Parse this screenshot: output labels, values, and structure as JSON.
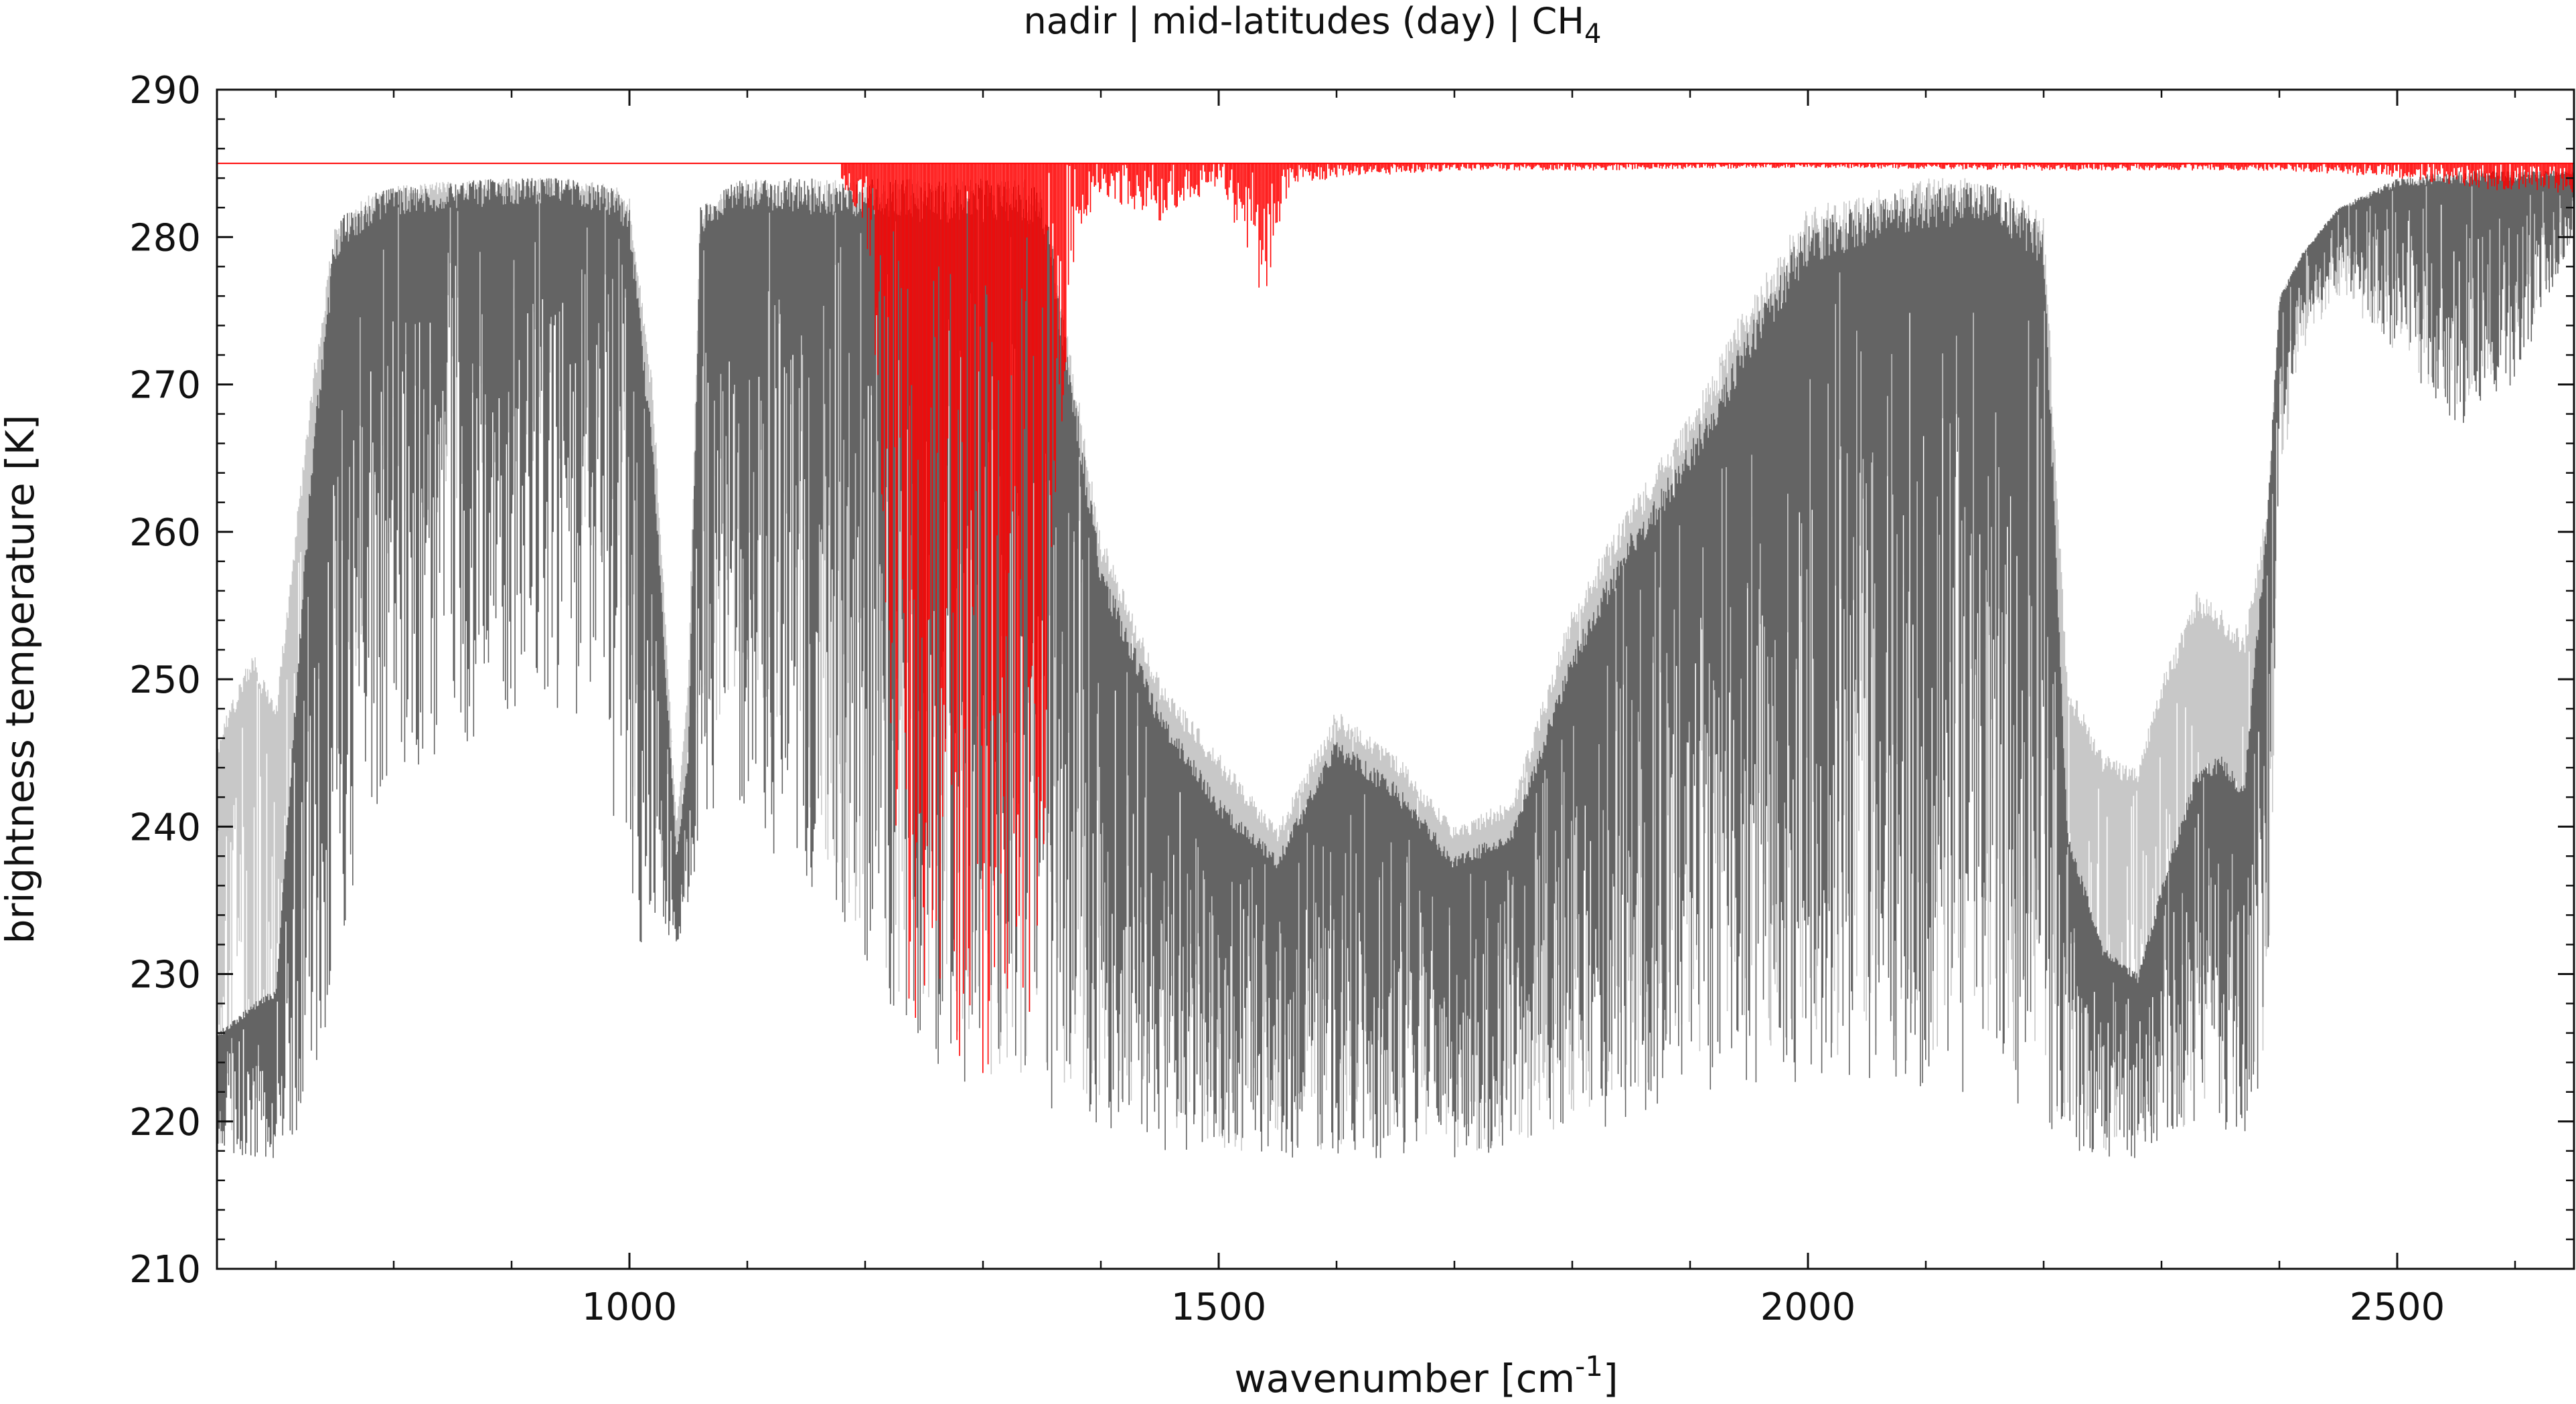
{
  "chart_data": {
    "type": "line",
    "title_prefix": "nadir | mid-latitudes (day) | CH",
    "title_subscript": "4",
    "xlabel_prefix": "wavenumber [cm",
    "xlabel_superscript": "-1",
    "xlabel_suffix": "]",
    "ylabel": "brightness temperature [K]",
    "xlim": [
      650,
      2650
    ],
    "ylim": [
      210,
      290
    ],
    "x_ticks": [
      1000,
      1500,
      2000,
      2500
    ],
    "x_tick_labels": [
      "1000",
      "1500",
      "2000",
      "2500"
    ],
    "x_minor_step": 100,
    "y_ticks": [
      210,
      220,
      230,
      240,
      250,
      260,
      270,
      280,
      290
    ],
    "y_tick_labels": [
      "210",
      "220",
      "230",
      "240",
      "250",
      "260",
      "270",
      "280",
      "290"
    ],
    "y_minor_step": 2,
    "grid": false,
    "legend": "none",
    "series": [
      {
        "color": "#c8c8c8",
        "envelope_x": [
          650,
          680,
          700,
          730,
          750,
          780,
          800,
          850,
          900,
          950,
          990,
          1000,
          1020,
          1040,
          1050,
          1060,
          1080,
          1100,
          1150,
          1200,
          1250,
          1300,
          1350,
          1400,
          1450,
          1500,
          1550,
          1600,
          1650,
          1700,
          1750,
          1800,
          1850,
          1900,
          1950,
          2000,
          2050,
          2100,
          2150,
          2200,
          2220,
          2250,
          2280,
          2300,
          2330,
          2350,
          2370,
          2390,
          2400,
          2420,
          2450,
          2500,
          2550,
          2600,
          2650
        ],
        "envelope_top": [
          246,
          252,
          248,
          270,
          281,
          283,
          283.5,
          283.8,
          284,
          284,
          283.5,
          283,
          270,
          240,
          250,
          282,
          283.5,
          284,
          284,
          284,
          284,
          284,
          284,
          260,
          250,
          245,
          240,
          248,
          245,
          240,
          242,
          255,
          262,
          268,
          276,
          282,
          283,
          284,
          284,
          282,
          250,
          245,
          244,
          250,
          256,
          255,
          253,
          262,
          276,
          279,
          282,
          284,
          284.5,
          284.5,
          284.5
        ],
        "envelope_bottom": [
          218,
          220,
          226,
          230,
          243,
          255,
          258,
          262,
          265,
          262,
          255,
          240,
          235,
          234,
          235,
          245,
          248,
          250,
          240,
          232,
          225,
          222,
          222,
          221,
          219,
          218,
          218,
          218,
          218,
          218,
          218,
          220,
          222,
          224,
          225,
          225,
          224,
          224,
          224,
          222,
          219,
          218,
          218,
          219,
          220,
          221,
          222,
          225,
          262,
          272,
          276,
          272,
          268,
          272,
          280
        ]
      },
      {
        "color": "#646464",
        "envelope_x": [
          650,
          680,
          700,
          730,
          750,
          780,
          800,
          850,
          900,
          950,
          990,
          1000,
          1020,
          1040,
          1050,
          1060,
          1080,
          1100,
          1150,
          1200,
          1250,
          1300,
          1350,
          1400,
          1450,
          1500,
          1550,
          1600,
          1650,
          1700,
          1750,
          1800,
          1850,
          1900,
          1950,
          2000,
          2050,
          2100,
          2150,
          2200,
          2220,
          2250,
          2280,
          2300,
          2330,
          2350,
          2370,
          2390,
          2400,
          2420,
          2450,
          2500,
          2550,
          2600,
          2650
        ],
        "envelope_top": [
          226,
          228,
          229,
          265,
          281,
          283,
          283.5,
          283.8,
          284,
          284,
          283.5,
          282,
          266,
          238,
          245,
          282,
          283.5,
          284,
          284,
          284,
          284,
          284,
          284,
          258,
          248,
          242,
          238,
          246,
          243,
          238,
          240,
          252,
          260,
          266,
          274,
          281,
          282.5,
          283.5,
          284,
          281,
          240,
          232,
          230,
          236,
          244,
          245,
          243,
          262,
          276,
          279,
          282,
          284,
          284.5,
          284.5,
          284.5
        ],
        "envelope_bottom": [
          217.5,
          217.5,
          217.5,
          220,
          230,
          240,
          242,
          245,
          248,
          248,
          240,
          232,
          232,
          232,
          233,
          240,
          242,
          240,
          235,
          230,
          224,
          222,
          221,
          219,
          218,
          217.5,
          217.5,
          217.5,
          217.5,
          217.5,
          218,
          219,
          220,
          221,
          222,
          222,
          222,
          222,
          222,
          220,
          218,
          217.5,
          217.5,
          218,
          219,
          219.5,
          218,
          225,
          266,
          274,
          277,
          272,
          267,
          270,
          280
        ]
      },
      {
        "color": "#ff0000",
        "baseline": 285,
        "dips_x": [
          1180,
          1200,
          1210,
          1220,
          1230,
          1240,
          1250,
          1260,
          1270,
          1280,
          1290,
          1300,
          1310,
          1320,
          1330,
          1340,
          1350,
          1360,
          1370,
          1380,
          1400,
          1420,
          1450,
          1470,
          1500,
          1535,
          1540,
          1560,
          1600,
          1700,
          1800,
          2000,
          2200,
          2400,
          2500,
          2550,
          2600,
          2640
        ],
        "dips_min": [
          283,
          281,
          270,
          250,
          232,
          225,
          223,
          222,
          222,
          224,
          222,
          220,
          224,
          222,
          222,
          225,
          232,
          250,
          270,
          280,
          283,
          282,
          281,
          282,
          283.5,
          275,
          276,
          283.5,
          284,
          284.5,
          284.5,
          284.7,
          284.5,
          284.5,
          284,
          283.5,
          283,
          283
        ]
      }
    ]
  }
}
